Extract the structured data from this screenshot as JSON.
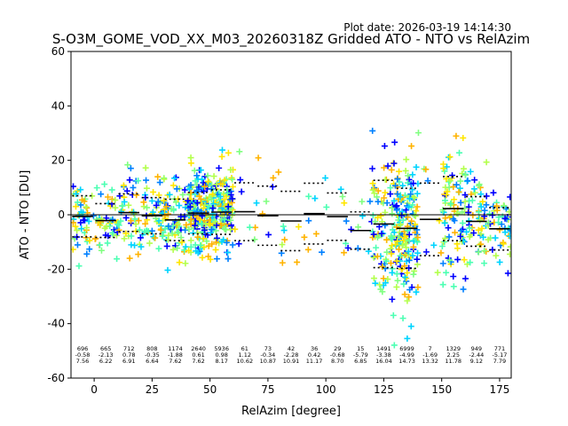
{
  "plot_date": "Plot date: 2026-03-19 14:14:30",
  "chart_data": {
    "type": "scatter",
    "title": "S-O3M_GOME_VOD_XX_M03_20260318Z Gridded ATO - NTO vs RelAzim",
    "xlabel": "RelAzim [degree]",
    "ylabel": "ATO - NTO [DU]",
    "xlim": [
      -10,
      180
    ],
    "ylim": [
      -60,
      60
    ],
    "xticks": [
      0,
      25,
      50,
      75,
      100,
      125,
      150,
      175
    ],
    "yticks": [
      -60,
      -40,
      -20,
      0,
      20,
      40,
      60
    ],
    "grid": false,
    "marker": "+",
    "colormap_colors": [
      "#0000ff",
      "#0080ff",
      "#00d4ff",
      "#4dffb3",
      "#80ff80",
      "#b3ff4d",
      "#ffe600",
      "#ffb300"
    ],
    "bins": [
      {
        "x": -5,
        "count": "696",
        "mean": "-0.58",
        "std": "7.56"
      },
      {
        "x": 5,
        "count": "665",
        "mean": "-2.13",
        "std": "6.22"
      },
      {
        "x": 15,
        "count": "712",
        "mean": "0.78",
        "std": "6.91"
      },
      {
        "x": 25,
        "count": "808",
        "mean": "-0.35",
        "std": "6.64"
      },
      {
        "x": 35,
        "count": "1174",
        "mean": "-1.88",
        "std": "7.62"
      },
      {
        "x": 45,
        "count": "2640",
        "mean": "0.61",
        "std": "7.62"
      },
      {
        "x": 55,
        "count": "5936",
        "mean": "0.98",
        "std": "8.17"
      },
      {
        "x": 65,
        "count": "61",
        "mean": "1.12",
        "std": "10.62"
      },
      {
        "x": 75,
        "count": "73",
        "mean": "-0.34",
        "std": "10.87"
      },
      {
        "x": 85,
        "count": "42",
        "mean": "-2.28",
        "std": "10.91"
      },
      {
        "x": 95,
        "count": "36",
        "mean": "0.42",
        "std": "11.17"
      },
      {
        "x": 105,
        "count": "29",
        "mean": "-0.68",
        "std": "8.70"
      },
      {
        "x": 115,
        "count": "15",
        "mean": "-5.79",
        "std": "6.85"
      },
      {
        "x": 125,
        "count": "1491",
        "mean": "-3.38",
        "std": "16.04"
      },
      {
        "x": 135,
        "count": "6999",
        "mean": "-4.99",
        "std": "14.73"
      },
      {
        "x": 145,
        "count": "7",
        "mean": "-1.69",
        "std": "13.32"
      },
      {
        "x": 155,
        "count": "1329",
        "mean": "2.25",
        "std": "11.78"
      },
      {
        "x": 165,
        "count": "949",
        "mean": "-2.44",
        "std": "9.12"
      },
      {
        "x": 175,
        "count": "771",
        "mean": "-5.17",
        "std": "7.79"
      }
    ]
  }
}
